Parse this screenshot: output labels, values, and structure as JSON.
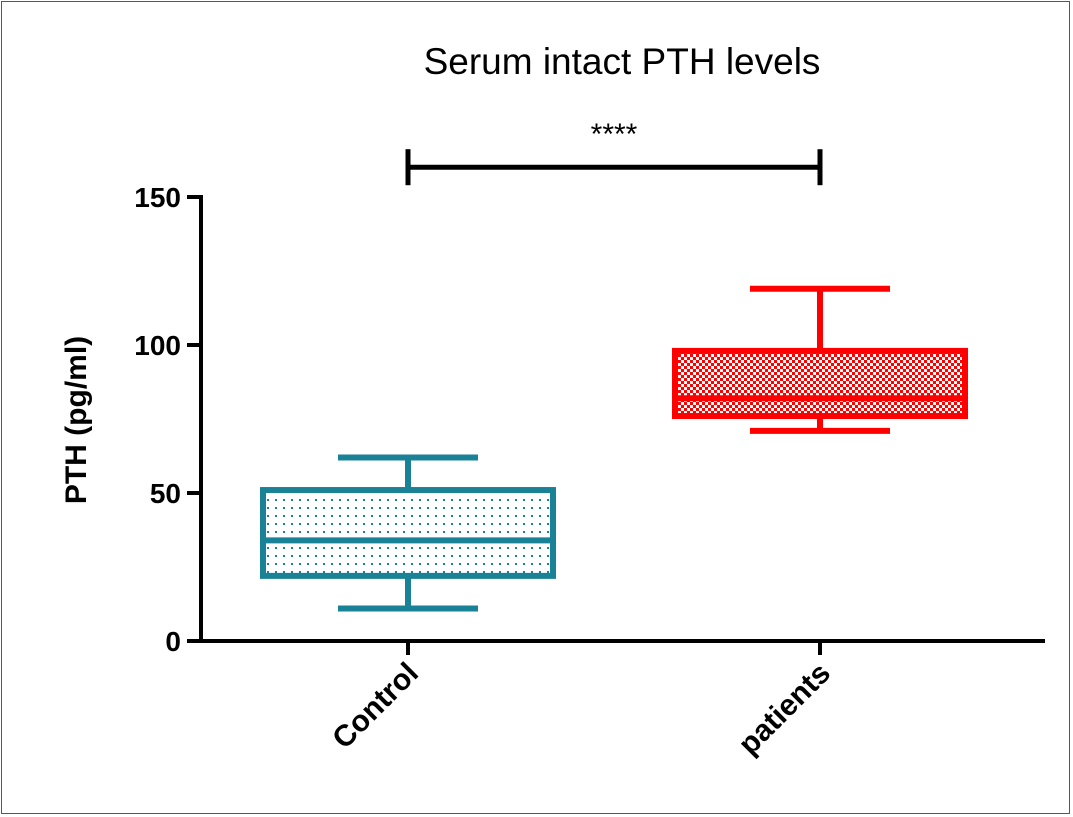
{
  "chart_data": {
    "type": "box",
    "title": "Serum intact PTH levels",
    "xlabel": "",
    "ylabel": "PTH (pg/ml)",
    "ylim": [
      0,
      150
    ],
    "yticks": [
      0,
      50,
      100,
      150
    ],
    "categories": [
      "Control",
      "patients"
    ],
    "series": [
      {
        "name": "Control",
        "color": "#1a8296",
        "pattern": "dots",
        "whisker_low": 11,
        "q1": 22,
        "median": 34,
        "q3": 51,
        "whisker_high": 62
      },
      {
        "name": "patients",
        "color": "#ff0000",
        "pattern": "checker",
        "whisker_low": 71,
        "q1": 76,
        "median": 82,
        "q3": 98,
        "whisker_high": 119
      }
    ],
    "significance": {
      "label": "****",
      "from": "Control",
      "to": "patients",
      "level": 155
    },
    "grid": false
  }
}
